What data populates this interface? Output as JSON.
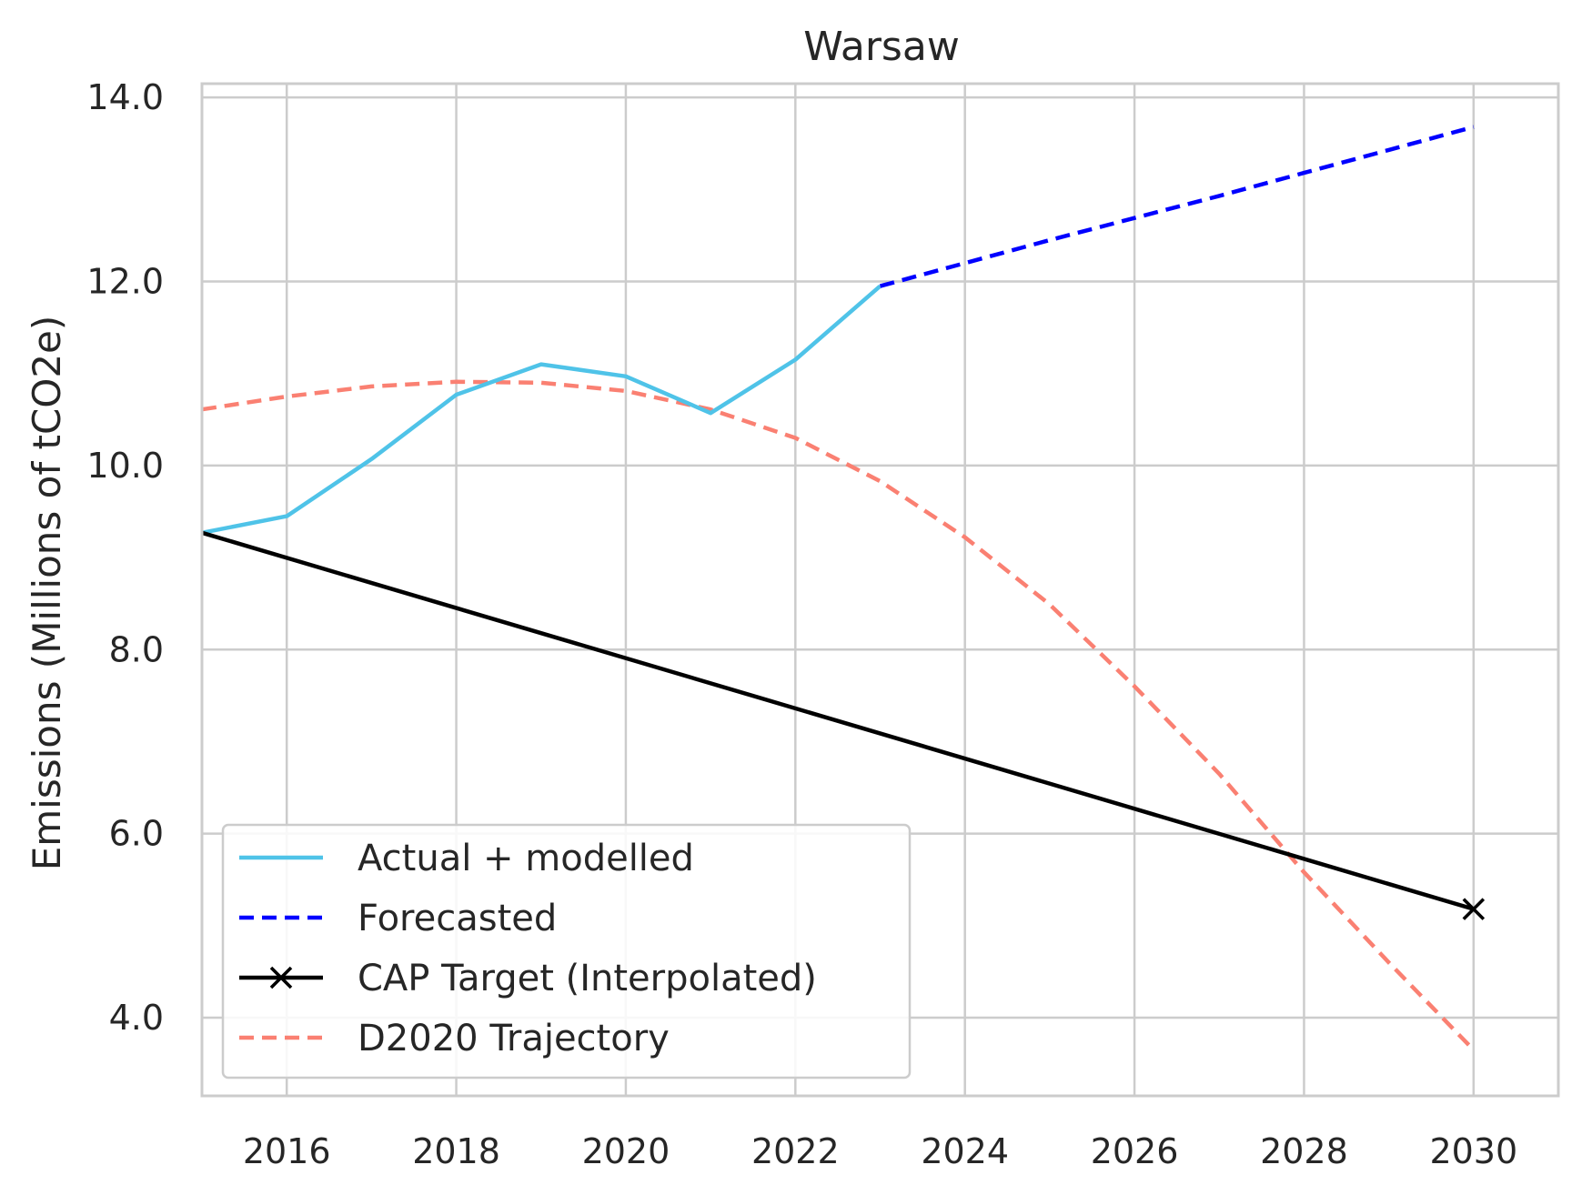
{
  "chart_data": {
    "type": "line",
    "title": "Warsaw",
    "xlabel": "",
    "ylabel": "Emissions (Millions of tCO2e)",
    "xlim": [
      2015,
      2031
    ],
    "ylim": [
      3.15,
      14.15
    ],
    "x_ticks": [
      2016,
      2018,
      2020,
      2022,
      2024,
      2026,
      2028,
      2030
    ],
    "y_ticks": [
      4.0,
      6.0,
      8.0,
      10.0,
      12.0,
      14.0
    ],
    "x_tick_labels": [
      "2016",
      "2018",
      "2020",
      "2022",
      "2024",
      "2026",
      "2028",
      "2030"
    ],
    "y_tick_labels": [
      "4.0",
      "6.0",
      "8.0",
      "10.0",
      "12.0",
      "14.0"
    ],
    "grid": true,
    "legend_position": "bottom-left",
    "series": [
      {
        "name": "Actual + modelled",
        "color": "#4fc3e8",
        "style": "solid",
        "x": [
          2015,
          2016,
          2017,
          2018,
          2019,
          2020,
          2021,
          2022,
          2023
        ],
        "y": [
          9.27,
          9.45,
          10.07,
          10.77,
          11.1,
          10.97,
          10.57,
          11.15,
          11.95
        ]
      },
      {
        "name": "Forecasted",
        "color": "#0000ff",
        "style": "dashed",
        "x": [
          2023,
          2024,
          2025,
          2026,
          2027,
          2028,
          2029,
          2030
        ],
        "y": [
          11.95,
          12.2,
          12.45,
          12.69,
          12.93,
          13.18,
          13.43,
          13.68
        ]
      },
      {
        "name": "CAP Target (Interpolated)",
        "color": "#000000",
        "style": "solid",
        "marker": "x",
        "marker_at_last_point": true,
        "x": [
          2015,
          2030
        ],
        "y": [
          9.27,
          5.18
        ]
      },
      {
        "name": "D2020 Trajectory",
        "color": "#fa8072",
        "style": "dashed",
        "x": [
          2015,
          2016,
          2017,
          2018,
          2019,
          2020,
          2021,
          2022,
          2023,
          2024,
          2025,
          2026,
          2027,
          2028,
          2029,
          2030
        ],
        "y": [
          10.61,
          10.75,
          10.86,
          10.91,
          10.9,
          10.81,
          10.61,
          10.3,
          9.83,
          9.22,
          8.49,
          7.6,
          6.65,
          5.58,
          4.6,
          3.65
        ]
      }
    ]
  }
}
